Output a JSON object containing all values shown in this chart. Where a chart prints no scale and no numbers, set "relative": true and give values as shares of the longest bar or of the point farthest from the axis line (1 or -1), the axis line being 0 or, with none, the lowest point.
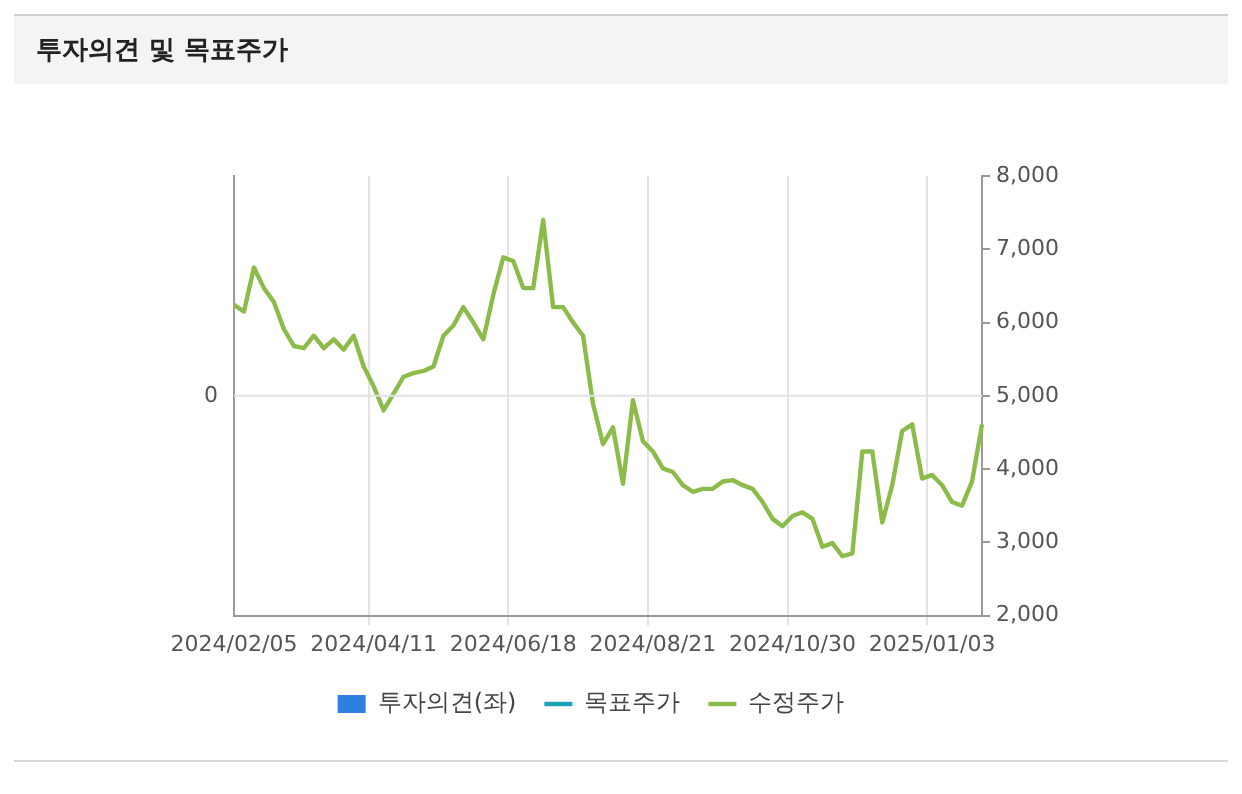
{
  "chart_data": {
    "type": "line",
    "title": "투자의견 및 목표주가",
    "categories": [
      "2024/02/05",
      null,
      null,
      null,
      null,
      null,
      null,
      null,
      null,
      null,
      null,
      null,
      null,
      null,
      "2024/04/11",
      null,
      null,
      null,
      null,
      null,
      null,
      null,
      null,
      null,
      null,
      null,
      null,
      null,
      "2024/06/18",
      null,
      null,
      null,
      null,
      null,
      null,
      null,
      null,
      null,
      null,
      null,
      null,
      null,
      "2024/08/21",
      null,
      null,
      null,
      null,
      null,
      null,
      null,
      null,
      null,
      null,
      null,
      null,
      null,
      "2024/10/30",
      null,
      null,
      null,
      null,
      null,
      null,
      null,
      null,
      null,
      null,
      null,
      null,
      null,
      "2025/01/03",
      null,
      null,
      null,
      null,
      null
    ],
    "series": [
      {
        "name": "투자의견(좌)",
        "type": "bar",
        "axis": "y",
        "color": "#2f7fe0",
        "values": [
          null,
          null,
          null,
          null,
          null,
          null,
          null,
          null,
          null,
          null,
          null,
          null,
          null,
          null,
          null,
          null,
          null,
          null,
          null,
          null,
          null,
          null,
          null,
          null,
          null,
          null,
          null,
          null,
          null,
          null,
          null,
          null,
          null,
          null,
          null,
          null,
          null,
          null,
          null,
          null,
          null,
          null,
          null,
          null,
          null,
          null,
          null,
          null,
          null,
          null,
          null,
          null,
          null,
          null,
          null,
          null,
          null,
          null,
          null,
          null,
          null,
          null,
          null,
          null,
          null,
          null,
          null,
          null,
          null,
          null,
          null,
          null,
          null,
          null,
          null,
          null
        ]
      },
      {
        "name": "목표주가",
        "type": "line",
        "axis": "y2",
        "color": "#1aa3b5",
        "values": [
          null,
          null,
          null,
          null,
          null,
          null,
          null,
          null,
          null,
          null,
          null,
          null,
          null,
          null,
          null,
          null,
          null,
          null,
          null,
          null,
          null,
          null,
          null,
          null,
          null,
          null,
          null,
          null,
          null,
          null,
          null,
          null,
          null,
          null,
          null,
          null,
          null,
          null,
          null,
          null,
          null,
          null,
          null,
          null,
          null,
          null,
          null,
          null,
          null,
          null,
          null,
          null,
          null,
          null,
          null,
          null,
          null,
          null,
          null,
          null,
          null,
          null,
          null,
          null,
          null,
          null,
          null,
          null,
          null,
          null,
          null,
          null,
          null,
          null,
          null,
          null
        ]
      },
      {
        "name": "수정주가",
        "axis": "y2",
        "color": "#8cbb4a",
        "values": [
          6240,
          6150,
          6750,
          6470,
          6280,
          5910,
          5680,
          5650,
          5820,
          5650,
          5770,
          5630,
          5820,
          5400,
          5130,
          4800,
          5030,
          5260,
          5310,
          5340,
          5400,
          5820,
          5960,
          6210,
          6000,
          5770,
          6380,
          6890,
          6840,
          6470,
          6470,
          7400,
          6210,
          6210,
          6000,
          5820,
          4890,
          4340,
          4570,
          3800,
          4940,
          4380,
          4240,
          4010,
          3960,
          3780,
          3690,
          3730,
          3730,
          3830,
          3850,
          3780,
          3730,
          3550,
          3320,
          3220,
          3360,
          3410,
          3320,
          2940,
          2990,
          2810,
          2850,
          4240,
          4240,
          3270,
          3780,
          4520,
          4610,
          3870,
          3920,
          3780,
          3550,
          3500,
          3830,
          4610
        ]
      }
    ],
    "relative": true,
    "annotations": [
      "0"
    ],
    "y2lim": [
      2000,
      8000
    ],
    "y2ticks": [
      {
        "value": 2000,
        "label": "2,000"
      },
      {
        "value": 3000,
        "label": "3,000"
      },
      {
        "value": 4000,
        "label": "4,000"
      },
      {
        "value": 5000,
        "label": "5,000"
      },
      {
        "value": 6000,
        "label": "6,000"
      },
      {
        "value": 7000,
        "label": "7,000"
      },
      {
        "value": 8000,
        "label": "8,000"
      }
    ],
    "grid": true,
    "legend": "bottom",
    "marker": "none",
    "line_style": "solid"
  }
}
